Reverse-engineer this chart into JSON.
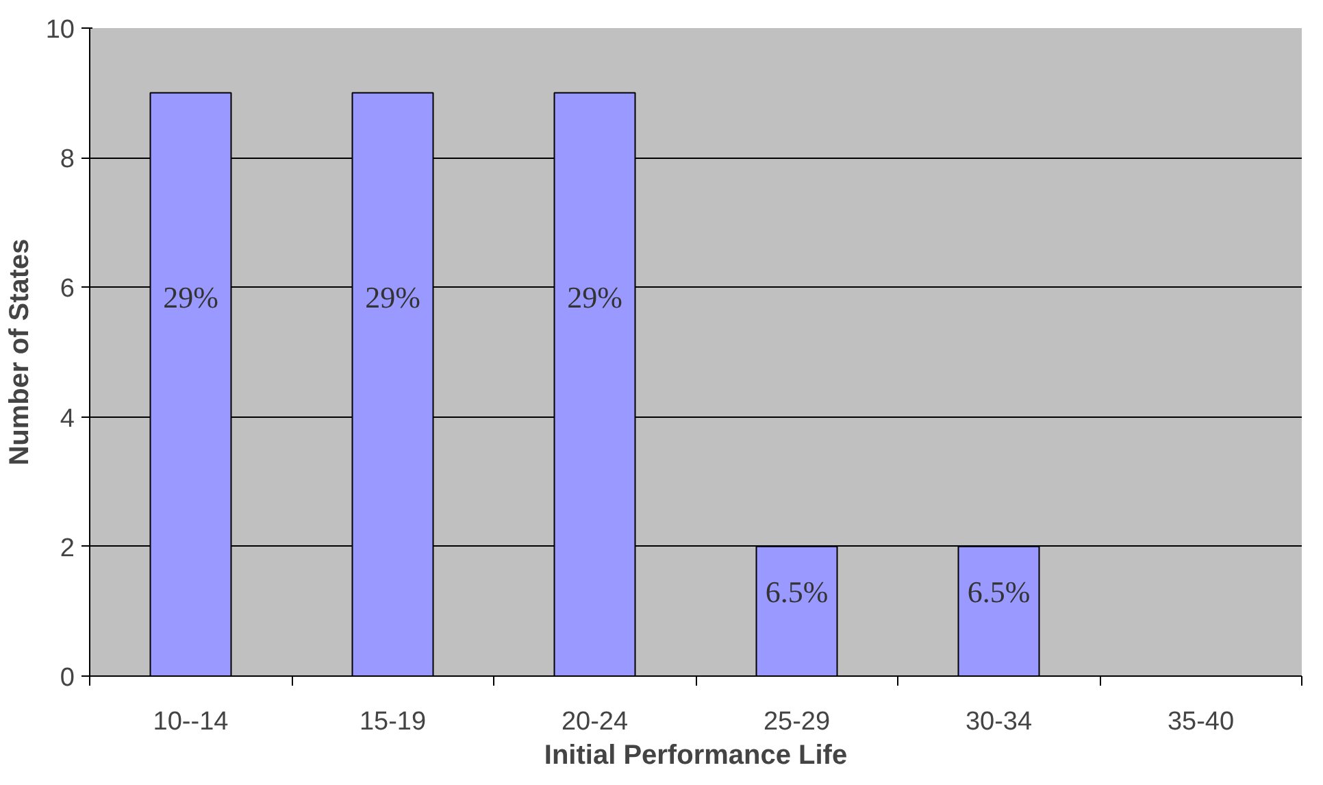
{
  "chart_data": {
    "type": "bar",
    "xlabel": "Initial Performance Life",
    "ylabel": "Number of States",
    "categories": [
      "10--14",
      "15-19",
      "20-24",
      "25-29",
      "30-34",
      "35-40"
    ],
    "values": [
      9,
      9,
      9,
      2,
      2,
      0
    ],
    "annotations": [
      "29%",
      "29%",
      "29%",
      "6.5%",
      "6.5%"
    ],
    "color": "#9999ff",
    "ylim": [
      0,
      10
    ],
    "yticks": [
      0,
      2,
      4,
      6,
      8,
      10
    ],
    "grid": "y"
  }
}
